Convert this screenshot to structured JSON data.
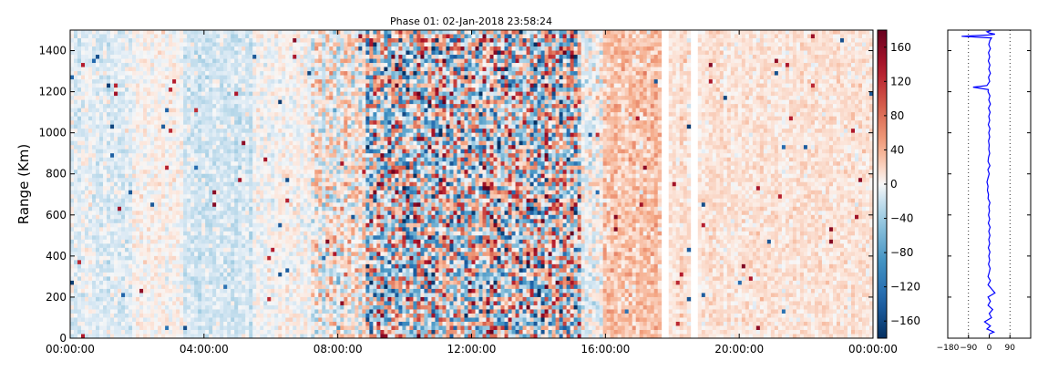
{
  "chart_data": [
    {
      "type": "heatmap",
      "title": "Phase 01: 02-Jan-2018 23:58:24",
      "xlabel": "",
      "ylabel": "Range (Km)",
      "x_ticks": [
        "00:00:00",
        "04:00:00",
        "08:00:00",
        "12:00:00",
        "16:00:00",
        "20:00:00",
        "00:00:00"
      ],
      "x_range_hours": [
        0,
        24
      ],
      "y_ticks": [
        0,
        200,
        400,
        600,
        800,
        1000,
        1200,
        1400
      ],
      "ylim": [
        0,
        1500
      ],
      "grid": false,
      "colormap": "RdBu_r",
      "colorbar": {
        "ticks": [
          -160,
          -120,
          -80,
          -40,
          0,
          40,
          80,
          120,
          160
        ],
        "range": [
          -180,
          180
        ]
      },
      "time_segments": [
        {
          "start": 0.0,
          "end": 1.8,
          "mean": -8,
          "noise": 14
        },
        {
          "start": 1.8,
          "end": 3.4,
          "mean": 2,
          "noise": 12
        },
        {
          "start": 3.4,
          "end": 5.5,
          "mean": -15,
          "noise": 14
        },
        {
          "start": 5.5,
          "end": 7.2,
          "mean": 0,
          "noise": 14
        },
        {
          "start": 7.2,
          "end": 8.8,
          "mean": 4,
          "noise": 40
        },
        {
          "start": 8.8,
          "end": 15.3,
          "mean": 0,
          "noise": 110
        },
        {
          "start": 15.3,
          "end": 15.9,
          "mean": -5,
          "noise": 25
        },
        {
          "start": 15.9,
          "end": 17.7,
          "mean": 30,
          "noise": 22
        },
        {
          "start": 18.2,
          "end": 18.6,
          "mean": 15,
          "noise": 15
        },
        {
          "start": 18.9,
          "end": 24.0,
          "mean": 12,
          "noise": 12
        }
      ],
      "gaps_hours": [
        [
          17.7,
          17.85
        ],
        [
          18.6,
          18.75
        ]
      ]
    },
    {
      "type": "line",
      "title": "",
      "xlabel": "",
      "ylabel": "",
      "x_ticks": [
        -180,
        -90,
        0,
        90
      ],
      "xlim": [
        -180,
        180
      ],
      "ylim": [
        0,
        1500
      ],
      "reference_lines": [
        -90,
        90
      ],
      "series": [
        {
          "color": "#0000ff",
          "points": [
            [
              0,
              20
            ],
            [
              20,
              30
            ],
            [
              -10,
              45
            ],
            [
              5,
              60
            ],
            [
              -20,
              80
            ],
            [
              10,
              100
            ],
            [
              0,
              120
            ],
            [
              15,
              140
            ],
            [
              -5,
              160
            ],
            [
              5,
              180
            ],
            [
              -5,
              200
            ],
            [
              25,
              220
            ],
            [
              10,
              240
            ],
            [
              -5,
              260
            ],
            [
              5,
              280
            ],
            [
              -5,
              300
            ],
            [
              0,
              320
            ],
            [
              4,
              340
            ],
            [
              -3,
              360
            ],
            [
              2,
              380
            ],
            [
              -2,
              400
            ],
            [
              3,
              420
            ],
            [
              -4,
              440
            ],
            [
              2,
              460
            ],
            [
              -2,
              480
            ],
            [
              3,
              500
            ],
            [
              -2,
              520
            ],
            [
              4,
              540
            ],
            [
              -4,
              560
            ],
            [
              2,
              580
            ],
            [
              -3,
              600
            ],
            [
              1,
              620
            ],
            [
              -2,
              640
            ],
            [
              3,
              660
            ],
            [
              -5,
              680
            ],
            [
              -3,
              700
            ],
            [
              -8,
              720
            ],
            [
              -5,
              740
            ],
            [
              -10,
              760
            ],
            [
              -5,
              780
            ],
            [
              0,
              800
            ],
            [
              -6,
              820
            ],
            [
              3,
              840
            ],
            [
              -5,
              860
            ],
            [
              -3,
              880
            ],
            [
              2,
              900
            ],
            [
              -2,
              920
            ],
            [
              0,
              940
            ],
            [
              -3,
              960
            ],
            [
              2,
              980
            ],
            [
              -2,
              1000
            ],
            [
              3,
              1020
            ],
            [
              -4,
              1040
            ],
            [
              2,
              1060
            ],
            [
              -2,
              1080
            ],
            [
              4,
              1100
            ],
            [
              -3,
              1120
            ],
            [
              5,
              1140
            ],
            [
              -2,
              1160
            ],
            [
              3,
              1180
            ],
            [
              -5,
              1200
            ],
            [
              -4,
              1210
            ],
            [
              -70,
              1222
            ],
            [
              -10,
              1230
            ],
            [
              2,
              1250
            ],
            [
              -3,
              1270
            ],
            [
              5,
              1290
            ],
            [
              -2,
              1310
            ],
            [
              3,
              1330
            ],
            [
              -4,
              1350
            ],
            [
              2,
              1370
            ],
            [
              -3,
              1390
            ],
            [
              5,
              1410
            ],
            [
              -2,
              1430
            ],
            [
              3,
              1450
            ],
            [
              10,
              1462
            ],
            [
              -120,
              1470
            ],
            [
              -5,
              1476
            ],
            [
              25,
              1480
            ],
            [
              0,
              1486
            ],
            [
              -10,
              1492
            ],
            [
              8,
              1497
            ]
          ]
        }
      ]
    }
  ]
}
